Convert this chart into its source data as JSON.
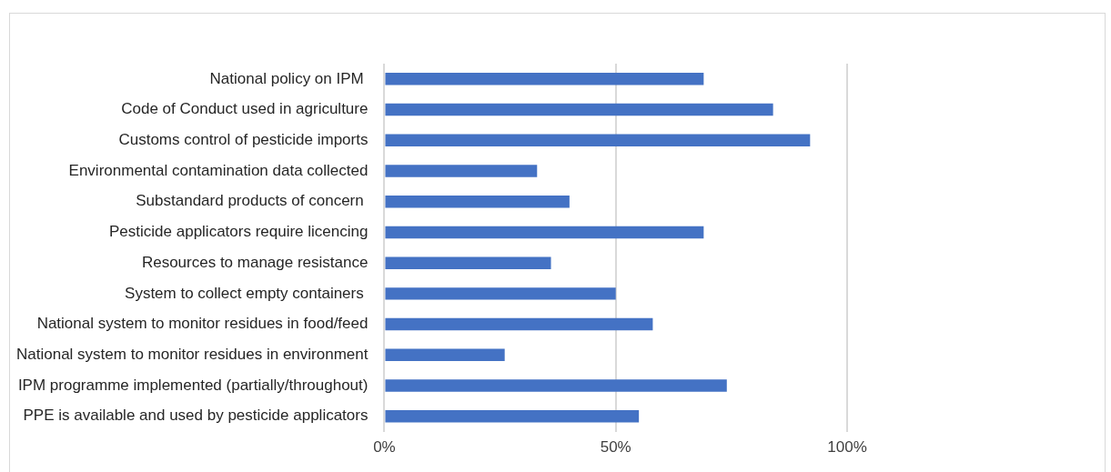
{
  "chart_data": {
    "type": "bar",
    "orientation": "horizontal",
    "categories": [
      "National policy on IPM ",
      "Code of Conduct used in agriculture",
      "Customs control of pesticide imports",
      "Environmental contamination data collected",
      "Substandard products of concern ",
      "Pesticide applicators require licencing",
      "Resources to manage resistance",
      "System to collect empty containers ",
      "National system to monitor residues in food/feed",
      "National system to monitor residues in environment",
      "IPM programme implemented (partially/throughout)",
      "PPE is available and used by pesticide applicators"
    ],
    "values": [
      69,
      84,
      92,
      33,
      40,
      69,
      36,
      50,
      58,
      26,
      74,
      55
    ],
    "color": "#4472c4",
    "xlim": [
      0,
      100
    ],
    "xticks": [
      {
        "value": 0,
        "label": "0%"
      },
      {
        "value": 50,
        "label": "50%"
      },
      {
        "value": 100,
        "label": "100%"
      }
    ],
    "grid": "x",
    "legend": false
  }
}
